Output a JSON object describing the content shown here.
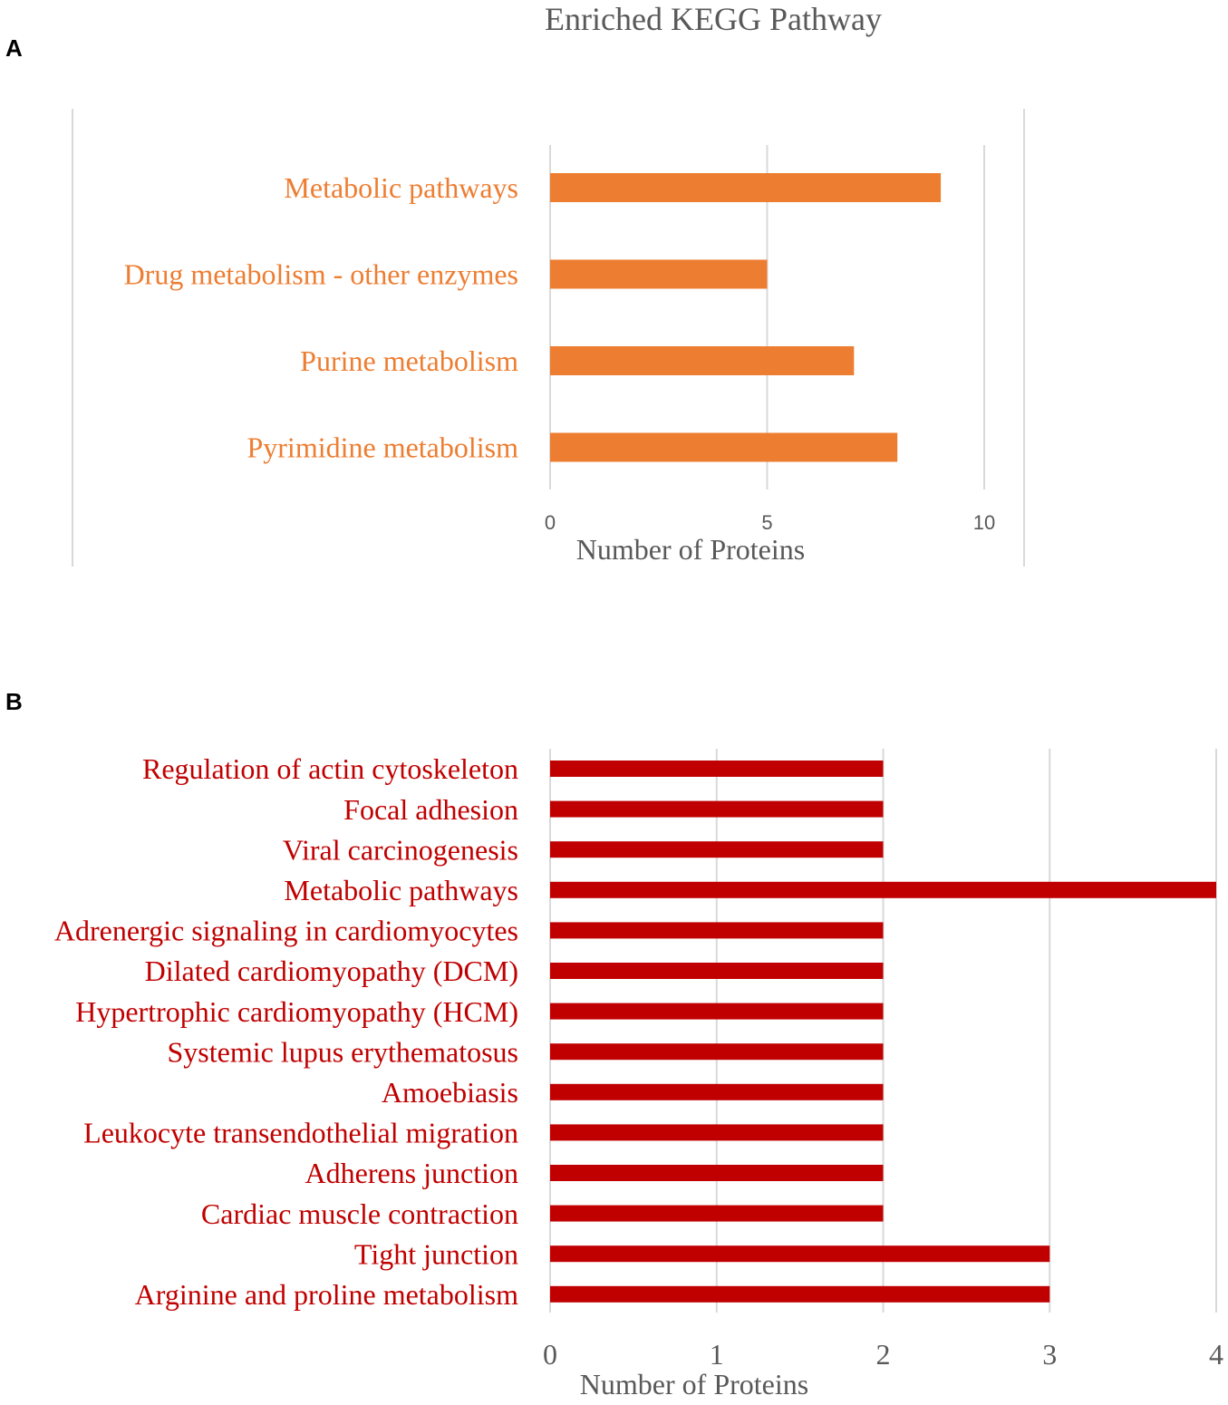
{
  "figure": {
    "title": "Enriched KEGG Pathway",
    "colors": {
      "panel_a": "#ED7D31",
      "panel_b": "#C00000",
      "title": "#595959",
      "axis_text": "#595959",
      "grid": "#D9D9D9"
    }
  },
  "chart_data": [
    {
      "panel": "A",
      "type": "bar",
      "orientation": "horizontal",
      "categories": [
        "Metabolic pathways",
        "Drug metabolism - other enzymes",
        "Purine metabolism",
        "Pyrimidine metabolism"
      ],
      "values": [
        9,
        5,
        7,
        8
      ],
      "xlabel": "Number of Proteins",
      "ylabel": "",
      "xlim": [
        0,
        10
      ],
      "xticks": [
        "0",
        "5",
        "10"
      ],
      "grid": true
    },
    {
      "panel": "B",
      "type": "bar",
      "orientation": "horizontal",
      "categories": [
        "Regulation of actin cytoskeleton",
        "Focal adhesion",
        "Viral carcinogenesis",
        "Metabolic pathways",
        "Adrenergic signaling in cardiomyocytes",
        "Dilated cardiomyopathy (DCM)",
        "Hypertrophic cardiomyopathy (HCM)",
        "Systemic lupus erythematosus",
        "Amoebiasis",
        "Leukocyte transendothelial migration",
        "Adherens junction",
        "Cardiac muscle contraction",
        "Tight junction",
        "Arginine and proline metabolism"
      ],
      "values": [
        2,
        2,
        2,
        4,
        2,
        2,
        2,
        2,
        2,
        2,
        2,
        2,
        3,
        3
      ],
      "xlabel": "Number of Proteins",
      "ylabel": "",
      "xlim": [
        0,
        4
      ],
      "xticks": [
        "0",
        "1",
        "2",
        "3",
        "4"
      ],
      "grid": true
    }
  ]
}
